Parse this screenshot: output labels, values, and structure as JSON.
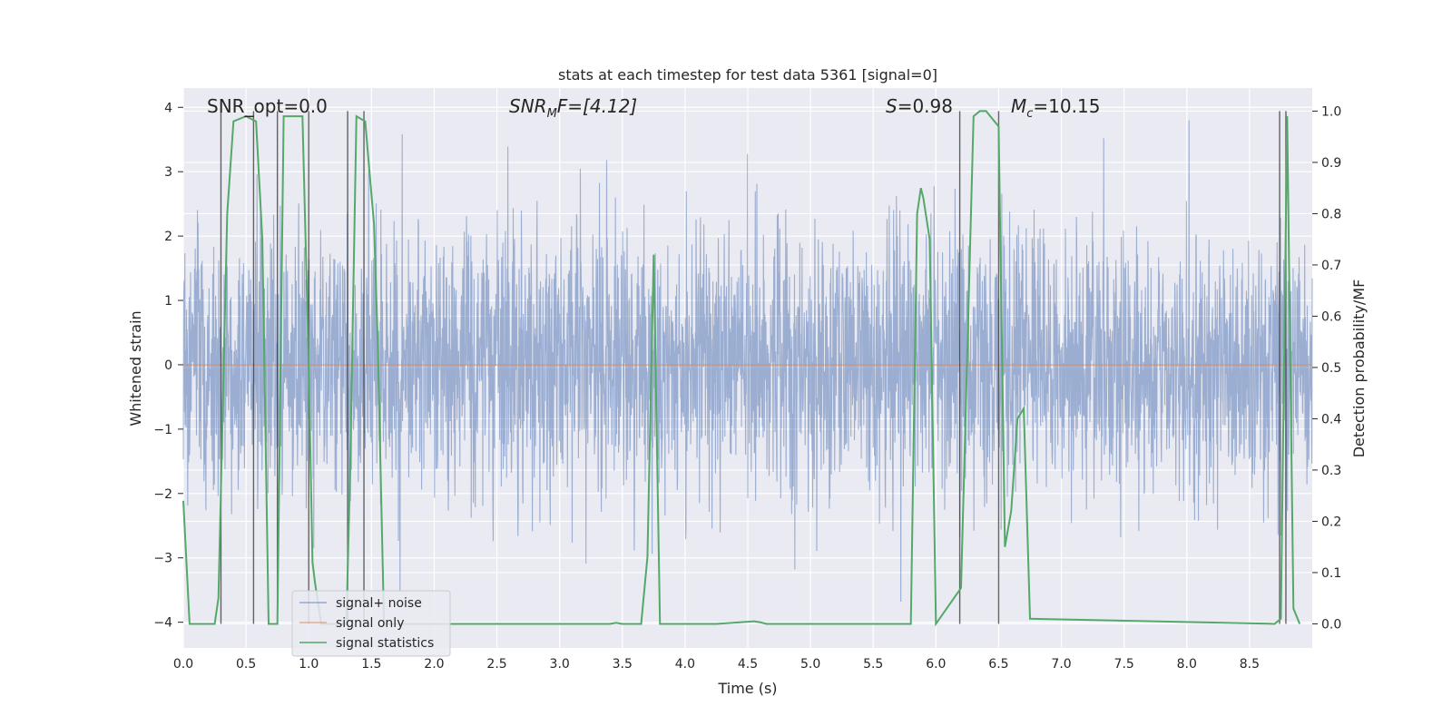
{
  "chart_data": {
    "type": "line",
    "title": "stats at each timestep for test data 5361 [signal=0]",
    "xlabel": "Time (s)",
    "ylabel_left": "Whitened strain",
    "ylabel_right": "Detection probability/MF",
    "xlim": [
      0,
      9.0
    ],
    "ylim_left": [
      -4.4,
      4.3
    ],
    "ylim_right": [
      -0.047,
      1.045
    ],
    "x_ticks": [
      "0.0",
      "0.5",
      "1.0",
      "1.5",
      "2.0",
      "2.5",
      "3.0",
      "3.5",
      "4.0",
      "4.5",
      "5.0",
      "5.5",
      "6.0",
      "6.5",
      "7.0",
      "7.5",
      "8.0",
      "8.5"
    ],
    "y_ticks_left": [
      "4",
      "3",
      "2",
      "1",
      "0",
      "−1",
      "−2",
      "−3",
      "−4"
    ],
    "y_ticks_right": [
      "1.0",
      "0.9",
      "0.8",
      "0.7",
      "0.6",
      "0.5",
      "0.4",
      "0.3",
      "0.2",
      "0.1",
      "0.0"
    ],
    "grid": true,
    "legend_position": "lower-left",
    "annotations": {
      "snr_opt": "SNR_opt=0.0",
      "snr_mf_base": "SNR",
      "snr_mf_sub": "M",
      "snr_mf_tail": "F=[4.12]",
      "s_italic": "S",
      "s_tail": "=0.98",
      "mc_italic": "M",
      "mc_sub": "c",
      "mc_tail": "=10.15"
    },
    "series": [
      {
        "name": "signal+ noise",
        "color": "#4c72b0",
        "kind": "noise",
        "description_note": "whitened noise, amplitude roughly within -3.6 to 3.8",
        "noise_sigma": 1.0
      },
      {
        "name": "signal only",
        "color": "#dd8452",
        "kind": "flat",
        "y": 0
      },
      {
        "name": "signal statistics",
        "color": "#55a868",
        "axis": "right",
        "x": [
          0.0,
          0.05,
          0.25,
          0.28,
          0.35,
          0.4,
          0.5,
          0.58,
          0.63,
          0.68,
          0.75,
          0.8,
          0.95,
          1.0,
          1.03,
          1.05,
          1.1,
          1.3,
          1.33,
          1.38,
          1.45,
          1.52,
          1.55,
          1.6,
          3.4,
          3.45,
          3.5,
          3.65,
          3.7,
          3.75,
          3.8,
          4.25,
          4.55,
          4.6,
          4.65,
          5.8,
          5.85,
          5.88,
          5.9,
          5.95,
          6.0,
          6.2,
          6.3,
          6.35,
          6.4,
          6.5,
          6.55,
          6.6,
          6.65,
          6.7,
          6.75,
          8.7,
          8.75,
          8.8,
          8.85,
          8.9
        ],
        "y": [
          0.24,
          0.0,
          0.0,
          0.05,
          0.8,
          0.98,
          0.99,
          0.98,
          0.75,
          0.0,
          0.0,
          0.99,
          0.99,
          0.5,
          0.12,
          0.08,
          0.0,
          0.0,
          0.3,
          0.99,
          0.98,
          0.78,
          0.55,
          0.0,
          0.0,
          0.002,
          0.0,
          0.0,
          0.13,
          0.72,
          0.0,
          0.0,
          0.005,
          0.003,
          0.0,
          0.0,
          0.8,
          0.85,
          0.83,
          0.75,
          0.0,
          0.07,
          0.99,
          1.0,
          1.0,
          0.97,
          0.15,
          0.22,
          0.4,
          0.42,
          0.01,
          0.0,
          0.01,
          0.99,
          0.03,
          0.0
        ]
      }
    ],
    "vertical_markers": [
      0.3,
      0.56,
      0.75,
      1.0,
      1.31,
      1.44,
      6.19,
      6.5,
      8.74,
      8.79
    ]
  }
}
